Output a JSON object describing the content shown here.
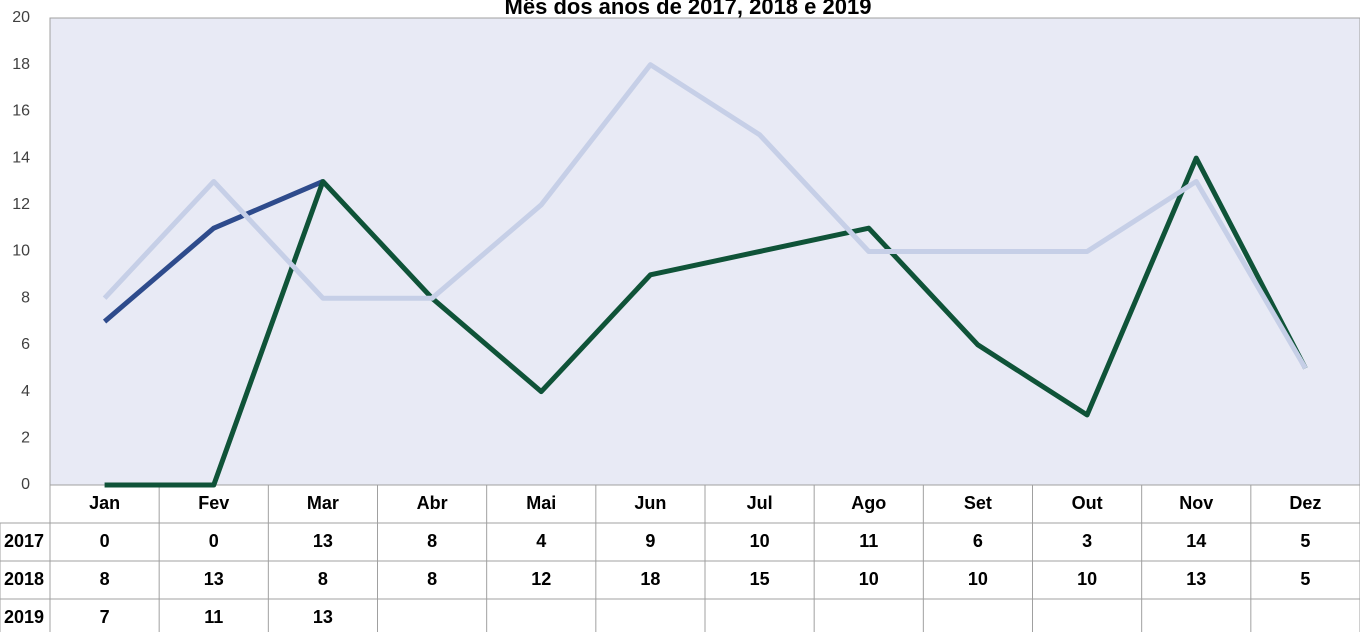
{
  "chart_data": {
    "type": "line",
    "title": "Mês dos anos de  2017, 2018 e 2019",
    "categories": [
      "Jan",
      "Fev",
      "Mar",
      "Abr",
      "Mai",
      "Jun",
      "Jul",
      "Ago",
      "Set",
      "Out",
      "Nov",
      "Dez"
    ],
    "series": [
      {
        "name": "2017",
        "color": "#0f5338",
        "values": [
          0,
          0,
          13,
          8,
          4,
          9,
          10,
          11,
          6,
          3,
          14,
          5
        ]
      },
      {
        "name": "2018",
        "color": "#c6cfe7",
        "values": [
          8,
          13,
          8,
          8,
          12,
          18,
          15,
          10,
          10,
          10,
          13,
          5
        ]
      },
      {
        "name": "2019",
        "color": "#2e4b8c",
        "values": [
          7,
          11,
          13,
          null,
          null,
          null,
          null,
          null,
          null,
          null,
          null,
          null
        ]
      }
    ],
    "ylim": [
      0,
      20
    ],
    "yticks": [
      0,
      2,
      4,
      6,
      8,
      10,
      12,
      14,
      16,
      18,
      20
    ],
    "grid": false
  }
}
